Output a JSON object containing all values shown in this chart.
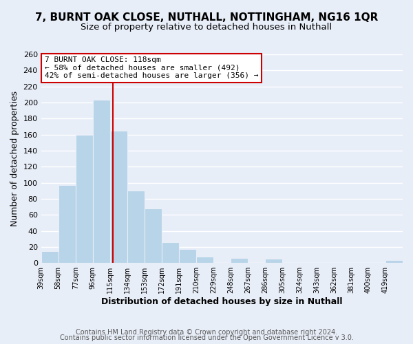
{
  "title": "7, BURNT OAK CLOSE, NUTHALL, NOTTINGHAM, NG16 1QR",
  "subtitle": "Size of property relative to detached houses in Nuthall",
  "xlabel": "Distribution of detached houses by size in Nuthall",
  "ylabel": "Number of detached properties",
  "footer_line1": "Contains HM Land Registry data © Crown copyright and database right 2024.",
  "footer_line2": "Contains public sector information licensed under the Open Government Licence v 3.0.",
  "annotation_title": "7 BURNT OAK CLOSE: 118sqm",
  "annotation_line1": "← 58% of detached houses are smaller (492)",
  "annotation_line2": "42% of semi-detached houses are larger (356) →",
  "property_line_x": 118,
  "bar_edges": [
    39,
    58,
    77,
    96,
    115,
    134,
    153,
    172,
    191,
    210,
    229,
    248,
    267,
    286,
    305,
    324,
    343,
    362,
    381,
    400,
    419
  ],
  "bar_heights": [
    15,
    97,
    160,
    203,
    165,
    90,
    68,
    26,
    17,
    8,
    0,
    6,
    0,
    5,
    0,
    0,
    0,
    0,
    0,
    0,
    4
  ],
  "bar_color": "#b8d4e8",
  "property_line_color": "#cc0000",
  "annotation_box_facecolor": "#ffffff",
  "annotation_box_edgecolor": "#cc0000",
  "ylim": [
    0,
    260
  ],
  "yticks": [
    0,
    20,
    40,
    60,
    80,
    100,
    120,
    140,
    160,
    180,
    200,
    220,
    240,
    260
  ],
  "background_color": "#e8eef8",
  "grid_color": "#ffffff",
  "title_fontsize": 11,
  "subtitle_fontsize": 9.5,
  "axis_fontsize": 9,
  "tick_fontsize": 8,
  "footer_fontsize": 7
}
